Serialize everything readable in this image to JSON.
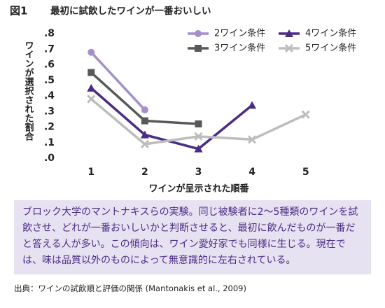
{
  "figure_label": "図1",
  "chart_data": {
    "type": "line",
    "title": "最初に試飲したワインが一番おいしい",
    "x_label": "ワインが呈示された順番",
    "y_label": "ワインが選択された割合",
    "x": [
      1,
      2,
      3,
      4,
      5
    ],
    "xlim": [
      0.5,
      5.5
    ],
    "xticks": [
      1,
      2,
      3,
      4,
      5
    ],
    "ylim": [
      0,
      0.8
    ],
    "yticks": [
      {
        "value": 0,
        "label": ".0"
      },
      {
        "value": 0.1,
        "label": ".1"
      },
      {
        "value": 0.2,
        "label": ".2"
      },
      {
        "value": 0.3,
        "label": ".3"
      },
      {
        "value": 0.4,
        "label": ".4"
      },
      {
        "value": 0.5,
        "label": ".5"
      },
      {
        "value": 0.6,
        "label": ".6"
      },
      {
        "value": 0.7,
        "label": ".7"
      },
      {
        "value": 0.8,
        "label": ".8"
      }
    ],
    "grid": false,
    "legend": "upper right",
    "series": [
      {
        "name": "2ワイン条件",
        "color": "#a48fcb",
        "marker": "circle",
        "values": [
          0.68,
          0.31,
          null,
          null,
          null
        ]
      },
      {
        "name": "4ワイン条件",
        "color": "#4b2c86",
        "marker": "triangle",
        "values": [
          0.45,
          0.15,
          0.06,
          0.34,
          null
        ]
      },
      {
        "name": "3ワイン条件",
        "color": "#595959",
        "marker": "square",
        "values": [
          0.55,
          0.24,
          0.22,
          null,
          null
        ]
      },
      {
        "name": "5ワイン条件",
        "color": "#bdbdbd",
        "marker": "x",
        "values": [
          0.38,
          0.09,
          0.14,
          0.12,
          0.28
        ]
      }
    ]
  },
  "caption": "ブロック大学のマントナキスらの実験。同じ被験者に2～5種類のワインを試飲させ、どれが一番おいしいかと判断させると、最初に飲んだものが一番だと答える人が多い。この傾向は、ワイン愛好家でも同様に生じる。現在では、味は品質以外のものによって無意識的に左右されている。",
  "source": "出典：ワインの試飲順と評価の関係 (Mantonakis et al., 2009)"
}
